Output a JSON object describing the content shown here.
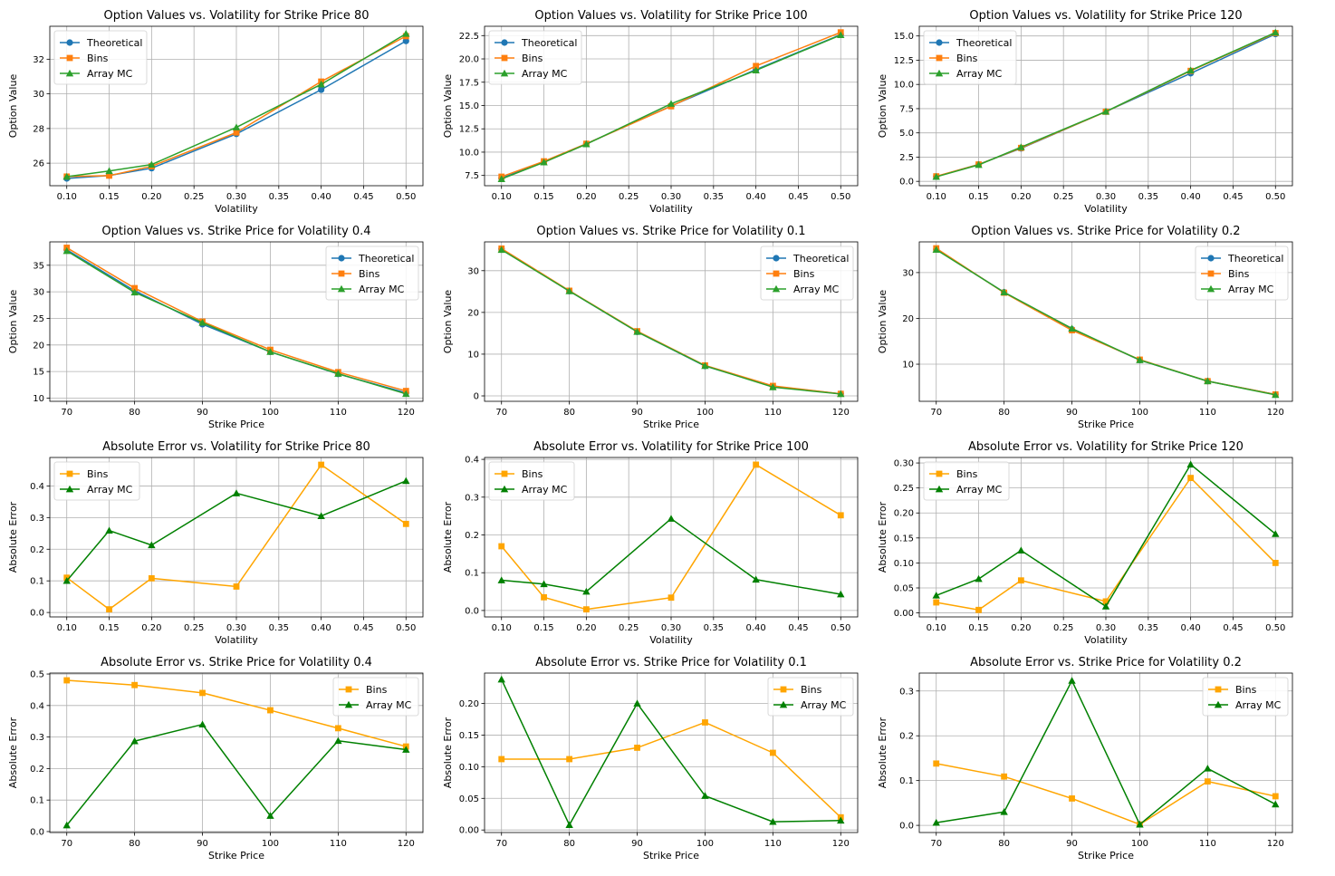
{
  "colors": {
    "theoretical": "#1f77b4",
    "bins_tab": "#ff7f0e",
    "array_tab": "#2ca02c",
    "bins_err": "#ffa500",
    "array_err": "#008000",
    "grid": "#b0b0b0"
  },
  "chart_data": [
    {
      "type": "line",
      "title": "Option Values vs. Volatility for Strike Price 80",
      "xlabel": "Volatility",
      "ylabel": "Option Value",
      "x": [
        0.1,
        0.15,
        0.2,
        0.3,
        0.4,
        0.5
      ],
      "xticks": [
        0.1,
        0.15,
        0.2,
        0.25,
        0.3,
        0.35,
        0.4,
        0.45,
        0.5
      ],
      "xtick_labels": [
        "0.10",
        "0.15",
        "0.20",
        "0.25",
        "0.30",
        "0.35",
        "0.40",
        "0.45",
        "0.50"
      ],
      "xlim": [
        0.08,
        0.52
      ],
      "yticks": [
        26,
        28,
        30,
        32
      ],
      "ytick_labels": [
        "26",
        "28",
        "30",
        "32"
      ],
      "ylim": [
        24.7,
        33.9
      ],
      "grid": true,
      "legend": "upper-left",
      "series": [
        {
          "name": "Theoretical",
          "marker": "circle",
          "color": "#1f77b4",
          "values": [
            25.12,
            25.29,
            25.71,
            27.69,
            30.24,
            33.05
          ]
        },
        {
          "name": "Bins",
          "marker": "square",
          "color": "#ff7f0e",
          "values": [
            25.23,
            25.28,
            25.82,
            27.77,
            30.71,
            33.33
          ]
        },
        {
          "name": "Array MC",
          "marker": "triangle",
          "color": "#2ca02c",
          "values": [
            25.22,
            25.55,
            25.92,
            28.07,
            30.55,
            33.47
          ]
        }
      ]
    },
    {
      "type": "line",
      "title": "Option Values vs. Volatility for Strike Price 100",
      "xlabel": "Volatility",
      "ylabel": "Option Value",
      "x": [
        0.1,
        0.15,
        0.2,
        0.3,
        0.4,
        0.5
      ],
      "xticks": [
        0.1,
        0.15,
        0.2,
        0.25,
        0.3,
        0.35,
        0.4,
        0.45,
        0.5
      ],
      "xtick_labels": [
        "0.10",
        "0.15",
        "0.20",
        "0.25",
        "0.30",
        "0.35",
        "0.40",
        "0.45",
        "0.50"
      ],
      "xlim": [
        0.08,
        0.52
      ],
      "yticks": [
        7.5,
        10,
        12.5,
        15,
        17.5,
        20,
        22.5
      ],
      "ytick_labels": [
        "7.5",
        "10.0",
        "12.5",
        "15.0",
        "17.5",
        "20.0",
        "22.5"
      ],
      "ylim": [
        6.4,
        23.5
      ],
      "grid": true,
      "legend": "upper-left",
      "series": [
        {
          "name": "Theoretical",
          "marker": "circle",
          "color": "#1f77b4",
          "values": [
            7.2,
            8.98,
            10.9,
            14.95,
            18.85,
            22.6
          ]
        },
        {
          "name": "Bins",
          "marker": "square",
          "color": "#ff7f0e",
          "values": [
            7.37,
            9.02,
            10.9,
            14.92,
            19.24,
            22.85
          ]
        },
        {
          "name": "Array MC",
          "marker": "triangle",
          "color": "#2ca02c",
          "values": [
            7.12,
            8.91,
            10.85,
            15.19,
            18.77,
            22.56
          ]
        }
      ]
    },
    {
      "type": "line",
      "title": "Option Values vs. Volatility for Strike Price 120",
      "xlabel": "Volatility",
      "ylabel": "Option Value",
      "x": [
        0.1,
        0.15,
        0.2,
        0.3,
        0.4,
        0.5
      ],
      "xticks": [
        0.1,
        0.15,
        0.2,
        0.25,
        0.3,
        0.35,
        0.4,
        0.45,
        0.5
      ],
      "xtick_labels": [
        "0.10",
        "0.15",
        "0.20",
        "0.25",
        "0.30",
        "0.35",
        "0.40",
        "0.45",
        "0.50"
      ],
      "xlim": [
        0.08,
        0.52
      ],
      "yticks": [
        0,
        2.5,
        5,
        7.5,
        10,
        12.5,
        15
      ],
      "ytick_labels": [
        "0.0",
        "2.5",
        "5.0",
        "7.5",
        "10.0",
        "12.5",
        "15.0"
      ],
      "ylim": [
        -0.45,
        16.0
      ],
      "grid": true,
      "legend": "upper-left",
      "series": [
        {
          "name": "Theoretical",
          "marker": "circle",
          "color": "#1f77b4",
          "values": [
            0.5,
            1.75,
            3.4,
            7.2,
            11.15,
            15.2
          ]
        },
        {
          "name": "Bins",
          "marker": "square",
          "color": "#ff7f0e",
          "values": [
            0.52,
            1.74,
            3.45,
            7.18,
            11.4,
            15.3
          ]
        },
        {
          "name": "Array MC",
          "marker": "triangle",
          "color": "#2ca02c",
          "values": [
            0.47,
            1.7,
            3.53,
            7.2,
            11.45,
            15.36
          ]
        }
      ]
    },
    {
      "type": "line",
      "title": "Option Values vs. Strike Price for Volatility 0.4",
      "xlabel": "Strike Price",
      "ylabel": "Option Value",
      "x": [
        70,
        80,
        90,
        100,
        110,
        120
      ],
      "xticks": [
        70,
        80,
        90,
        100,
        110,
        120
      ],
      "xtick_labels": [
        "70",
        "80",
        "90",
        "100",
        "110",
        "120"
      ],
      "xlim": [
        67.5,
        122.5
      ],
      "yticks": [
        10,
        15,
        20,
        25,
        30,
        35
      ],
      "ytick_labels": [
        "10",
        "15",
        "20",
        "25",
        "30",
        "35"
      ],
      "ylim": [
        9.4,
        39.4
      ],
      "grid": true,
      "legend": "upper-right",
      "series": [
        {
          "name": "Theoretical",
          "marker": "circle",
          "color": "#1f77b4",
          "values": [
            37.9,
            30.2,
            23.9,
            18.7,
            14.55,
            11.0
          ]
        },
        {
          "name": "Bins",
          "marker": "square",
          "color": "#ff7f0e",
          "values": [
            38.3,
            30.7,
            24.4,
            19.1,
            14.9,
            11.35
          ]
        },
        {
          "name": "Array MC",
          "marker": "triangle",
          "color": "#2ca02c",
          "values": [
            37.7,
            29.9,
            24.2,
            18.7,
            14.6,
            10.8
          ]
        }
      ]
    },
    {
      "type": "line",
      "title": "Option Values vs. Strike Price for Volatility 0.1",
      "xlabel": "Strike Price",
      "ylabel": "Option Value",
      "x": [
        70,
        80,
        90,
        100,
        110,
        120
      ],
      "xticks": [
        70,
        80,
        90,
        100,
        110,
        120
      ],
      "xtick_labels": [
        "70",
        "80",
        "90",
        "100",
        "110",
        "120"
      ],
      "xlim": [
        67.5,
        122.5
      ],
      "yticks": [
        0,
        10,
        20,
        30
      ],
      "ytick_labels": [
        "0",
        "10",
        "20",
        "30"
      ],
      "ylim": [
        -1.3,
        36.9
      ],
      "grid": true,
      "legend": "upper-right",
      "series": [
        {
          "name": "Theoretical",
          "marker": "circle",
          "color": "#1f77b4",
          "values": [
            35.2,
            25.1,
            15.35,
            7.15,
            2.3,
            0.5
          ]
        },
        {
          "name": "Bins",
          "marker": "square",
          "color": "#ff7f0e",
          "values": [
            35.3,
            25.2,
            15.5,
            7.3,
            2.4,
            0.5
          ]
        },
        {
          "name": "Array MC",
          "marker": "triangle",
          "color": "#2ca02c",
          "values": [
            35.0,
            25.1,
            15.35,
            7.2,
            2.1,
            0.45
          ]
        }
      ]
    },
    {
      "type": "line",
      "title": "Option Values vs. Strike Price for Volatility 0.2",
      "xlabel": "Strike Price",
      "ylabel": "Option Value",
      "x": [
        70,
        80,
        90,
        100,
        110,
        120
      ],
      "xticks": [
        70,
        80,
        90,
        100,
        110,
        120
      ],
      "xtick_labels": [
        "70",
        "80",
        "90",
        "100",
        "110",
        "120"
      ],
      "xlim": [
        67.5,
        122.5
      ],
      "yticks": [
        10,
        20,
        30
      ],
      "ytick_labels": [
        "10",
        "20",
        "30"
      ],
      "ylim": [
        1.9,
        36.7
      ],
      "grid": true,
      "legend": "upper-right",
      "series": [
        {
          "name": "Theoretical",
          "marker": "circle",
          "color": "#1f77b4",
          "values": [
            35.1,
            25.7,
            17.6,
            10.9,
            6.3,
            3.4
          ]
        },
        {
          "name": "Bins",
          "marker": "square",
          "color": "#ff7f0e",
          "values": [
            35.3,
            25.6,
            17.4,
            11.0,
            6.3,
            3.4
          ]
        },
        {
          "name": "Array MC",
          "marker": "triangle",
          "color": "#2ca02c",
          "values": [
            35.0,
            25.7,
            17.8,
            10.9,
            6.3,
            3.3
          ]
        }
      ]
    },
    {
      "type": "line",
      "title": "Absolute Error vs. Volatility for Strike Price 80",
      "xlabel": "Volatility",
      "ylabel": "Absolute Error",
      "x": [
        0.1,
        0.15,
        0.2,
        0.3,
        0.4,
        0.5
      ],
      "xticks": [
        0.1,
        0.15,
        0.2,
        0.25,
        0.3,
        0.35,
        0.4,
        0.45,
        0.5
      ],
      "xtick_labels": [
        "0.10",
        "0.15",
        "0.20",
        "0.25",
        "0.30",
        "0.35",
        "0.40",
        "0.45",
        "0.50"
      ],
      "xlim": [
        0.08,
        0.52
      ],
      "yticks": [
        0,
        0.1,
        0.2,
        0.3,
        0.4
      ],
      "ytick_labels": [
        "0.0",
        "0.1",
        "0.2",
        "0.3",
        "0.4"
      ],
      "ylim": [
        -0.014,
        0.49
      ],
      "grid": true,
      "legend": "upper-left",
      "series": [
        {
          "name": "Bins",
          "marker": "square",
          "color": "#ffa500",
          "values": [
            0.11,
            0.01,
            0.108,
            0.082,
            0.467,
            0.28
          ]
        },
        {
          "name": "Array MC",
          "marker": "triangle",
          "color": "#008000",
          "values": [
            0.1,
            0.259,
            0.213,
            0.377,
            0.305,
            0.416
          ]
        }
      ]
    },
    {
      "type": "line",
      "title": "Absolute Error vs. Volatility for Strike Price 100",
      "xlabel": "Volatility",
      "ylabel": "Absolute Error",
      "x": [
        0.1,
        0.15,
        0.2,
        0.3,
        0.4,
        0.5
      ],
      "xticks": [
        0.1,
        0.15,
        0.2,
        0.25,
        0.3,
        0.35,
        0.4,
        0.45,
        0.5
      ],
      "xtick_labels": [
        "0.10",
        "0.15",
        "0.20",
        "0.25",
        "0.30",
        "0.35",
        "0.40",
        "0.45",
        "0.50"
      ],
      "xlim": [
        0.08,
        0.52
      ],
      "yticks": [
        0,
        0.1,
        0.2,
        0.3,
        0.4
      ],
      "ytick_labels": [
        "0.0",
        "0.1",
        "0.2",
        "0.3",
        "0.4"
      ],
      "ylim": [
        -0.017,
        0.405
      ],
      "grid": true,
      "legend": "upper-left",
      "series": [
        {
          "name": "Bins",
          "marker": "square",
          "color": "#ffa500",
          "values": [
            0.17,
            0.035,
            0.003,
            0.034,
            0.386,
            0.252
          ]
        },
        {
          "name": "Array MC",
          "marker": "triangle",
          "color": "#008000",
          "values": [
            0.08,
            0.07,
            0.05,
            0.243,
            0.082,
            0.043
          ]
        }
      ]
    },
    {
      "type": "line",
      "title": "Absolute Error vs. Volatility for Strike Price 120",
      "xlabel": "Volatility",
      "ylabel": "Absolute Error",
      "x": [
        0.1,
        0.15,
        0.2,
        0.3,
        0.4,
        0.5
      ],
      "xticks": [
        0.1,
        0.15,
        0.2,
        0.25,
        0.3,
        0.35,
        0.4,
        0.45,
        0.5
      ],
      "xtick_labels": [
        "0.10",
        "0.15",
        "0.20",
        "0.25",
        "0.30",
        "0.35",
        "0.40",
        "0.45",
        "0.50"
      ],
      "xlim": [
        0.08,
        0.52
      ],
      "yticks": [
        0,
        0.05,
        0.1,
        0.15,
        0.2,
        0.25,
        0.3
      ],
      "ytick_labels": [
        "0.00",
        "0.05",
        "0.10",
        "0.15",
        "0.20",
        "0.25",
        "0.30"
      ],
      "ylim": [
        -0.008,
        0.311
      ],
      "grid": true,
      "legend": "upper-left",
      "series": [
        {
          "name": "Bins",
          "marker": "square",
          "color": "#ffa500",
          "values": [
            0.021,
            0.006,
            0.065,
            0.023,
            0.27,
            0.1
          ]
        },
        {
          "name": "Array MC",
          "marker": "triangle",
          "color": "#008000",
          "values": [
            0.035,
            0.068,
            0.125,
            0.013,
            0.297,
            0.158
          ]
        }
      ]
    },
    {
      "type": "line",
      "title": "Absolute Error vs. Strike Price for Volatility 0.4",
      "xlabel": "Strike Price",
      "ylabel": "Absolute Error",
      "x": [
        70,
        80,
        90,
        100,
        110,
        120
      ],
      "xticks": [
        70,
        80,
        90,
        100,
        110,
        120
      ],
      "xtick_labels": [
        "70",
        "80",
        "90",
        "100",
        "110",
        "120"
      ],
      "xlim": [
        67.5,
        122.5
      ],
      "yticks": [
        0,
        0.1,
        0.2,
        0.3,
        0.4,
        0.5
      ],
      "ytick_labels": [
        "0.0",
        "0.1",
        "0.2",
        "0.3",
        "0.4",
        "0.5"
      ],
      "ylim": [
        -0.003,
        0.503
      ],
      "grid": true,
      "legend": "upper-right",
      "series": [
        {
          "name": "Bins",
          "marker": "square",
          "color": "#ffa500",
          "values": [
            0.48,
            0.465,
            0.44,
            0.385,
            0.328,
            0.27
          ]
        },
        {
          "name": "Array MC",
          "marker": "triangle",
          "color": "#008000",
          "values": [
            0.02,
            0.287,
            0.34,
            0.05,
            0.288,
            0.26
          ]
        }
      ]
    },
    {
      "type": "line",
      "title": "Absolute Error vs. Strike Price for Volatility 0.1",
      "xlabel": "Strike Price",
      "ylabel": "Absolute Error",
      "x": [
        70,
        80,
        90,
        100,
        110,
        120
      ],
      "xticks": [
        70,
        80,
        90,
        100,
        110,
        120
      ],
      "xtick_labels": [
        "70",
        "80",
        "90",
        "100",
        "110",
        "120"
      ],
      "xlim": [
        67.5,
        122.5
      ],
      "yticks": [
        0,
        0.05,
        0.1,
        0.15,
        0.2
      ],
      "ytick_labels": [
        "0.00",
        "0.05",
        "0.10",
        "0.15",
        "0.20"
      ],
      "ylim": [
        -0.004,
        0.248
      ],
      "grid": true,
      "legend": "upper-right",
      "series": [
        {
          "name": "Bins",
          "marker": "square",
          "color": "#ffa500",
          "values": [
            0.112,
            0.112,
            0.13,
            0.17,
            0.122,
            0.02
          ]
        },
        {
          "name": "Array MC",
          "marker": "triangle",
          "color": "#008000",
          "values": [
            0.238,
            0.008,
            0.2,
            0.054,
            0.013,
            0.015
          ]
        }
      ]
    },
    {
      "type": "line",
      "title": "Absolute Error vs. Strike Price for Volatility 0.2",
      "xlabel": "Strike Price",
      "ylabel": "Absolute Error",
      "x": [
        70,
        80,
        90,
        100,
        110,
        120
      ],
      "xticks": [
        70,
        80,
        90,
        100,
        110,
        120
      ],
      "xtick_labels": [
        "70",
        "80",
        "90",
        "100",
        "110",
        "120"
      ],
      "xlim": [
        67.5,
        122.5
      ],
      "yticks": [
        0,
        0.1,
        0.2,
        0.3
      ],
      "ytick_labels": [
        "0.0",
        "0.1",
        "0.2",
        "0.3"
      ],
      "ylim": [
        -0.016,
        0.34
      ],
      "grid": true,
      "legend": "upper-right",
      "series": [
        {
          "name": "Bins",
          "marker": "square",
          "color": "#ffa500",
          "values": [
            0.138,
            0.109,
            0.06,
            0.002,
            0.098,
            0.065
          ]
        },
        {
          "name": "Array MC",
          "marker": "triangle",
          "color": "#008000",
          "values": [
            0.006,
            0.03,
            0.323,
            0.002,
            0.127,
            0.047
          ]
        }
      ]
    }
  ]
}
